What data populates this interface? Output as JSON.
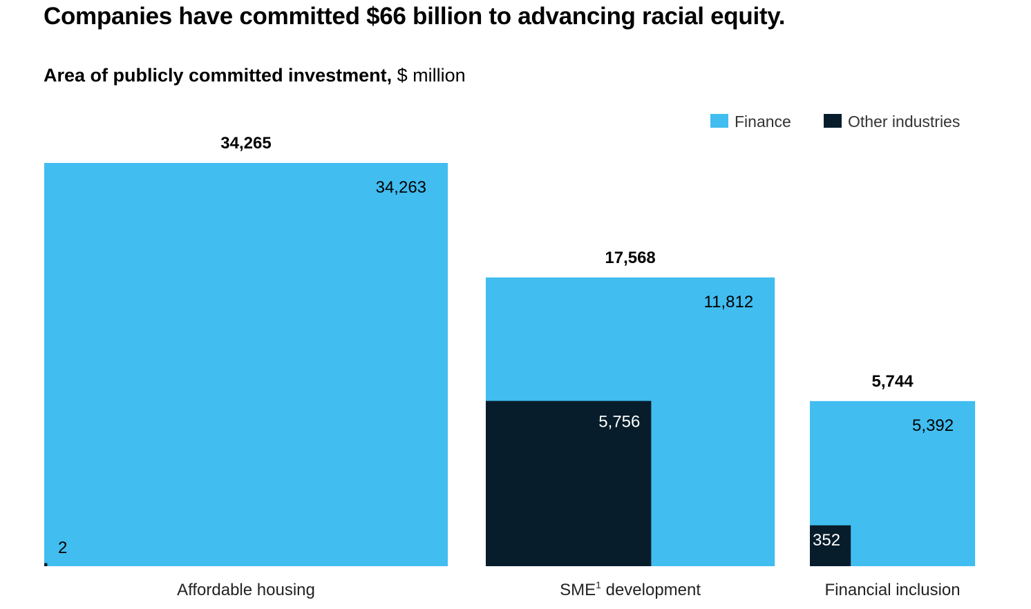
{
  "title": "Companies have committed $66 billion to advancing racial equity.",
  "subtitle_bold": "Area of publicly committed investment,",
  "subtitle_unit": " $ million",
  "colors": {
    "finance": "#41BDF0",
    "other": "#081D2B"
  },
  "chart_data": {
    "type": "area-square",
    "legend": {
      "position": "top-right",
      "entries": [
        "Finance",
        "Other industries"
      ]
    },
    "categories": [
      {
        "label": "Affordable housing",
        "label_sup": "",
        "label_rest": "",
        "total": "34,265",
        "finance": "34,263",
        "other": "2"
      },
      {
        "label": "SME",
        "label_sup": "1",
        "label_rest": " development",
        "total": "17,568",
        "finance": "11,812",
        "other": "5,756"
      },
      {
        "label": "Financial inclusion",
        "label_sup": "",
        "label_rest": "",
        "total": "5,744",
        "finance": "5,392",
        "other": "352"
      }
    ]
  }
}
